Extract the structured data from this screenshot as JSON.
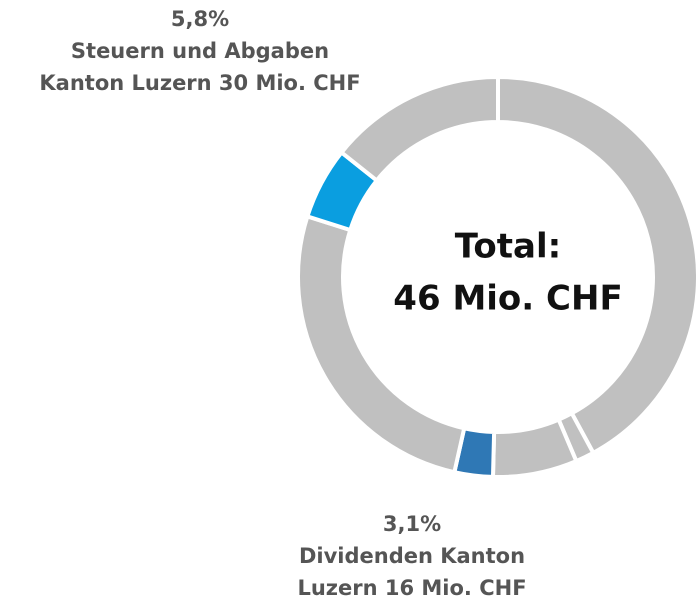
{
  "chart_data": {
    "type": "donut",
    "categories": [
      null,
      null,
      null,
      [
        "Dividenden Kanton",
        "Luzern 16 Mio. CHF"
      ],
      null,
      [
        "Steuern und Abgaben",
        "Kanton Luzern 30 Mio. CHF"
      ],
      null
    ],
    "values": [
      42.1,
      1.5,
      6.8,
      3.1,
      26.4,
      5.8,
      14.3
    ],
    "value_labels": [
      null,
      null,
      null,
      "3,1%",
      null,
      "5,8%",
      null
    ],
    "colors": [
      "#c0c0c0",
      "#c0c0c0",
      "#c0c0c0",
      "#2f78b5",
      "#c0c0c0",
      "#0a9ee0",
      "#c0c0c0"
    ],
    "center_label": [
      "Total:",
      "46 Mio. CHF"
    ]
  }
}
